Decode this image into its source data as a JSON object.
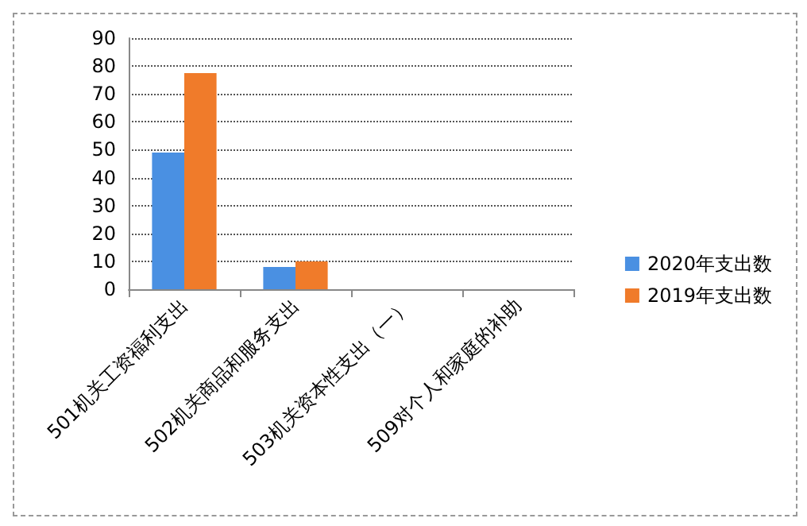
{
  "chart_data": {
    "type": "bar",
    "categories": [
      "501机关工资福利支出",
      "502机关商品和服务支出",
      "503机关资本性支出（一）",
      "509对个人和家庭的补助"
    ],
    "series": [
      {
        "name": "2020年支出数",
        "color": "#4a90e2",
        "values": [
          49,
          8,
          0,
          0
        ]
      },
      {
        "name": "2019年支出数",
        "color": "#f07b2a",
        "values": [
          77.5,
          10,
          0,
          0
        ]
      }
    ],
    "ylim": [
      0,
      90
    ],
    "yticks": [
      0,
      10,
      20,
      30,
      40,
      50,
      60,
      70,
      80,
      90
    ],
    "grid": "y",
    "legend": "right"
  }
}
